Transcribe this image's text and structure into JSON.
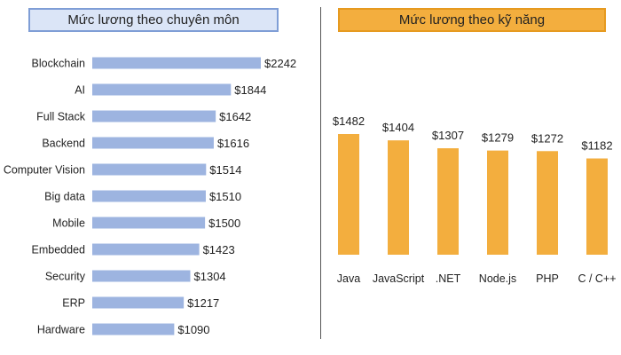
{
  "colors": {
    "left_bar": "#9db4e0",
    "left_header_bg": "#dbe5f7",
    "left_header_border": "#7f9ed6",
    "right_bar": "#f3ae3e",
    "right_header_bg": "#f3ae3e",
    "right_header_border": "#e69a20"
  },
  "chart_data": [
    {
      "type": "bar",
      "orientation": "horizontal",
      "title": "Mức lương theo chuyên môn",
      "categories": [
        "Blockchain",
        "AI",
        "Full Stack",
        "Backend",
        "Computer Vision",
        "Big data",
        "Mobile",
        "Embedded",
        "Security",
        "ERP",
        "Hardware"
      ],
      "values": [
        2242,
        1844,
        1642,
        1616,
        1514,
        1510,
        1500,
        1423,
        1304,
        1217,
        1090
      ],
      "value_labels": [
        "$2242",
        "$1844",
        "$1642",
        "$1616",
        "$1514",
        "$1510",
        "$1500",
        "$1423",
        "$1304",
        "$1217",
        "$1090"
      ],
      "grid": false
    },
    {
      "type": "bar",
      "orientation": "vertical",
      "title": "Mức lương theo kỹ năng",
      "categories": [
        "Java",
        "JavaScript",
        ".NET",
        "Node.js",
        "PHP",
        "C / C++"
      ],
      "values": [
        1482,
        1404,
        1307,
        1279,
        1272,
        1182
      ],
      "value_labels": [
        "$1482",
        "$1404",
        "$1307",
        "$1279",
        "$1272",
        "$1182"
      ],
      "grid": false
    }
  ]
}
